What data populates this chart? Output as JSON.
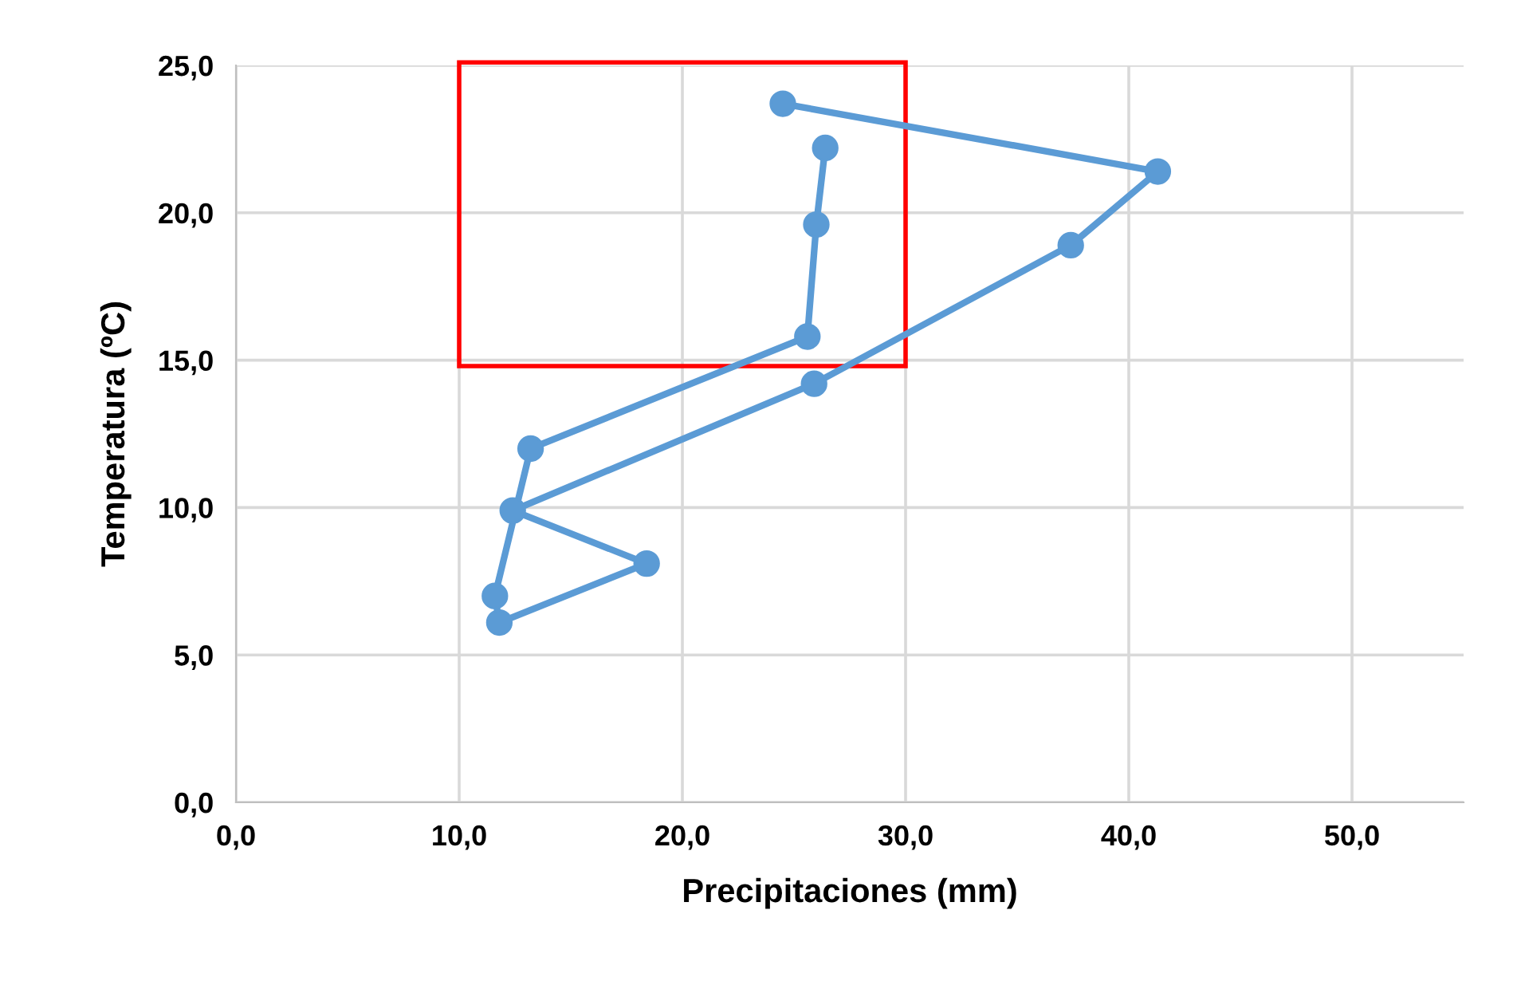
{
  "chart_data": {
    "type": "line",
    "xlabel": "Precipitaciones (mm)",
    "ylabel": "Temperatura (ºC)",
    "series": [
      {
        "color": "#5b9bd5",
        "x": [
          24.5,
          41.3,
          37.4,
          25.9,
          12.4,
          18.4,
          11.8,
          11.6,
          13.2,
          25.6,
          26.0,
          26.4
        ],
        "values": [
          23.7,
          21.4,
          18.9,
          14.2,
          9.9,
          8.1,
          6.1,
          7.0,
          12.0,
          15.8,
          19.6,
          22.2
        ]
      }
    ],
    "xlim": [
      0,
      55
    ],
    "ylim": [
      0,
      25
    ],
    "xticks": [
      {
        "value": 0,
        "label": "0,0"
      },
      {
        "value": 10,
        "label": "10,0"
      },
      {
        "value": 20,
        "label": "20,0"
      },
      {
        "value": 30,
        "label": "30,0"
      },
      {
        "value": 40,
        "label": "40,0"
      },
      {
        "value": 50,
        "label": "50,0"
      }
    ],
    "yticks": [
      {
        "value": 0,
        "label": "0,0"
      },
      {
        "value": 5,
        "label": "5,0"
      },
      {
        "value": 10,
        "label": "10,0"
      },
      {
        "value": 15,
        "label": "15,0"
      },
      {
        "value": 20,
        "label": "20,0"
      },
      {
        "value": 25,
        "label": "25,0"
      }
    ],
    "grid": true,
    "marker": "circle",
    "line_style": "solid"
  }
}
